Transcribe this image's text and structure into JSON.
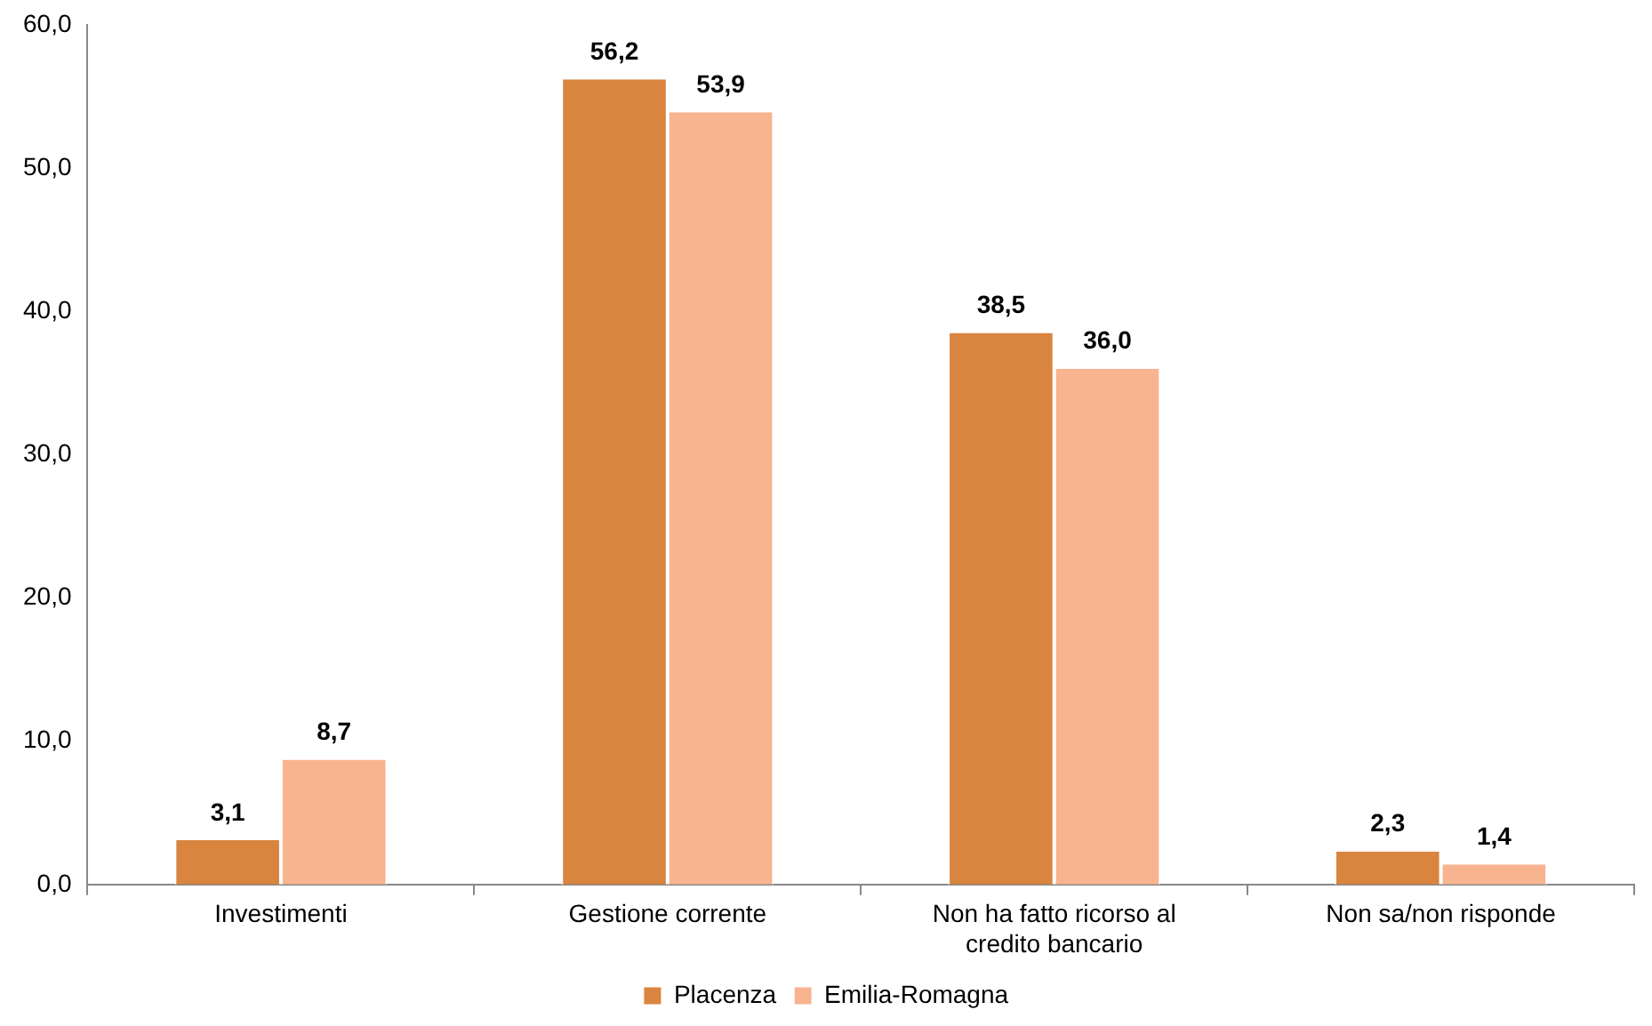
{
  "chart_data": {
    "type": "bar",
    "categories": [
      "Investimenti",
      "Gestione corrente",
      "Non ha fatto ricorso al credito bancario",
      "Non sa/non risponde"
    ],
    "series": [
      {
        "name": "Placenza",
        "color": "#d9843f",
        "values": [
          3.1,
          56.2,
          38.5,
          2.3
        ],
        "value_labels": [
          "3,1",
          "56,2",
          "38,5",
          "2,3"
        ]
      },
      {
        "name": "Emilia-Romagna",
        "color": "#f8b48f",
        "values": [
          8.7,
          53.9,
          36.0,
          1.4
        ],
        "value_labels": [
          "8,7",
          "53,9",
          "36,0",
          "1,4"
        ]
      }
    ],
    "ylim": [
      0,
      60
    ],
    "yticks": [
      {
        "value": 0,
        "label": "0,0"
      },
      {
        "value": 10,
        "label": "10,0"
      },
      {
        "value": 20,
        "label": "20,0"
      },
      {
        "value": 30,
        "label": "30,0"
      },
      {
        "value": 40,
        "label": "40,0"
      },
      {
        "value": 50,
        "label": "50,0"
      },
      {
        "value": 60,
        "label": "60,0"
      }
    ],
    "grid": false,
    "legend": "bottom"
  }
}
